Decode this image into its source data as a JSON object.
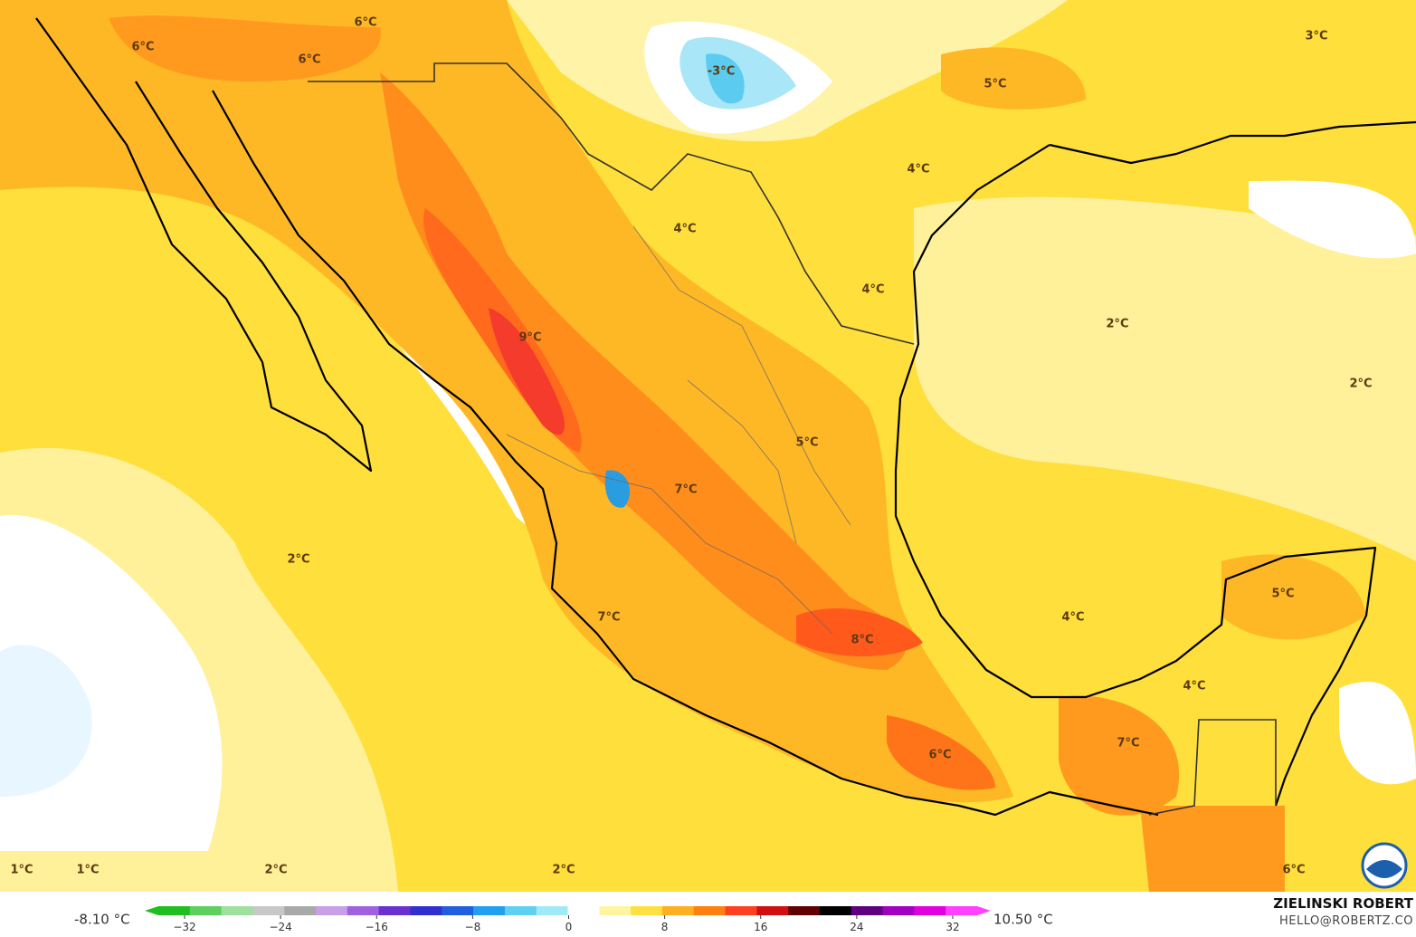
{
  "map": {
    "labels": [
      "6°C",
      "6°C",
      "6°C",
      "-3°C",
      "3°C",
      "5°C",
      "4°C",
      "4°C",
      "4°C",
      "2°C",
      "9°C",
      "2°C",
      "5°C",
      "7°C",
      "2°C",
      "5°C",
      "7°C",
      "4°C",
      "8°C",
      "4°C",
      "7°C",
      "6°C",
      "1°C",
      "1°C",
      "2°C",
      "2°C",
      "6°C"
    ]
  },
  "colorbar": {
    "min_label": "-8.10 °C",
    "max_label": "10.50 °C",
    "ticks": [
      "−32",
      "−24",
      "−16",
      "−8",
      "0",
      "8",
      "16",
      "24",
      "32"
    ]
  },
  "credits": {
    "author": "ZIELINSKI ROBERT",
    "contact": "HELLO@ROBERTZ.CO"
  }
}
